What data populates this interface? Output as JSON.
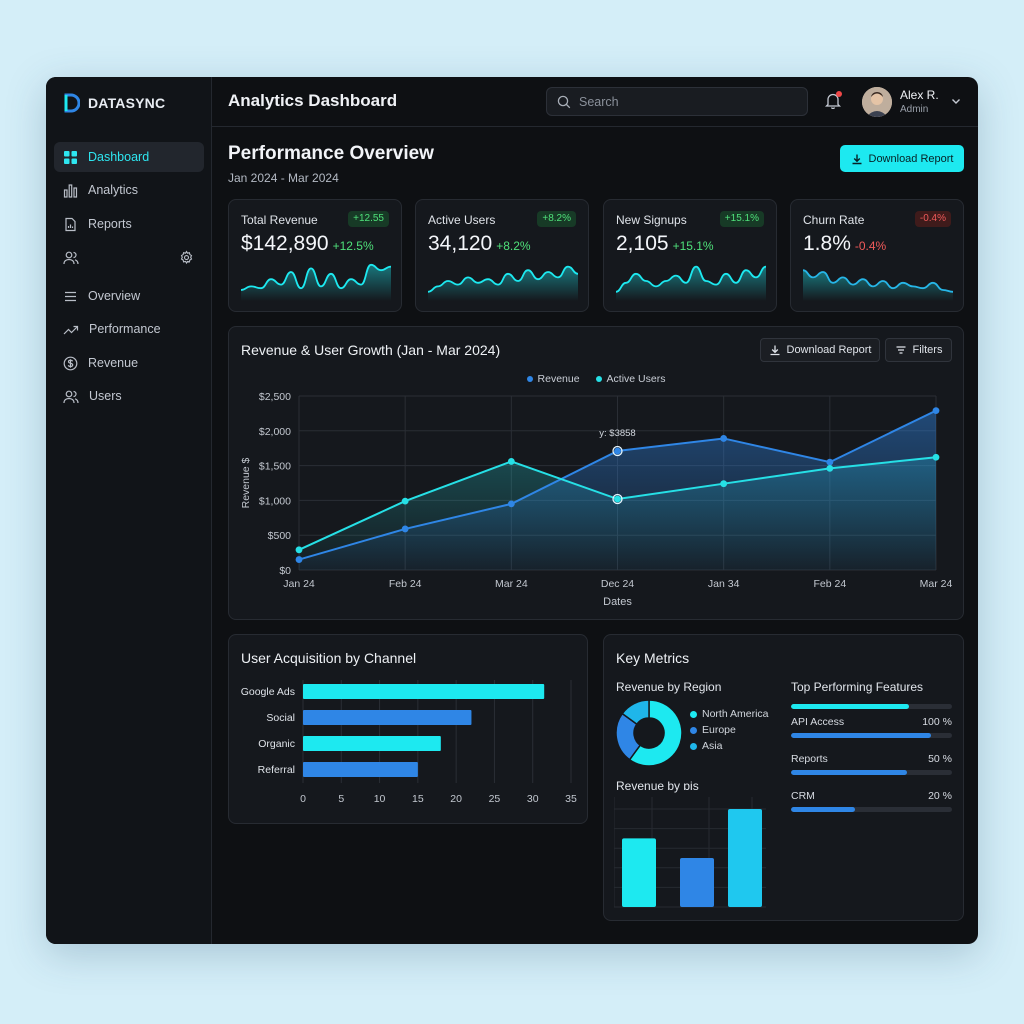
{
  "brand": {
    "name": "DATASYNC",
    "accent": "#1de9f0"
  },
  "sidebar": {
    "items": [
      {
        "label": "Dashboard",
        "icon": "grid-icon",
        "active": true
      },
      {
        "label": "Analytics",
        "icon": "bar-chart-icon"
      },
      {
        "label": "Reports",
        "icon": "document-icon"
      },
      {
        "label": "",
        "icon": "users-icon"
      },
      {
        "label": "Overview",
        "icon": "list-icon"
      },
      {
        "label": "Performance",
        "icon": "trend-icon"
      },
      {
        "label": "Revenue",
        "icon": "dollar-icon"
      },
      {
        "label": "Users",
        "icon": "users-icon"
      }
    ],
    "settings_icon": "gear-icon"
  },
  "header": {
    "title": "Analytics Dashboard",
    "search_placeholder": "Search",
    "user": {
      "name": "Alex R.",
      "role": "Admin"
    }
  },
  "overview": {
    "title": "Performance Overview",
    "date_range": "Jan 2024 - Mar 2024",
    "download_label": "Download Report"
  },
  "stats": [
    {
      "label": "Total Revenue",
      "value": "$142,890",
      "delta": "+12.5%",
      "badge": "+12.55",
      "trend": "up",
      "spark": [
        0.25,
        0.35,
        0.3,
        0.55,
        0.4,
        0.75,
        0.3,
        0.85,
        0.35,
        0.7,
        0.3,
        0.55,
        0.4,
        0.95,
        0.8,
        0.9
      ]
    },
    {
      "label": "Active Users",
      "value": "34,120",
      "delta": "+8.2%",
      "badge": "+8.2%",
      "trend": "up",
      "spark": [
        0.2,
        0.35,
        0.5,
        0.4,
        0.6,
        0.45,
        0.55,
        0.4,
        0.7,
        0.5,
        0.8,
        0.55,
        0.75,
        0.6,
        0.9,
        0.7
      ]
    },
    {
      "label": "New Signups",
      "value": "2,105",
      "delta": "+15.1%",
      "badge": "+15.1%",
      "trend": "up",
      "spark": [
        0.2,
        0.45,
        0.7,
        0.5,
        0.35,
        0.5,
        0.65,
        0.45,
        0.9,
        0.5,
        0.4,
        0.7,
        0.45,
        0.8,
        0.6,
        0.9
      ]
    },
    {
      "label": "Churn Rate",
      "value": "1.8%",
      "delta": "-0.4%",
      "badge": "-0.4%",
      "trend": "down",
      "spark": [
        0.8,
        0.6,
        0.75,
        0.45,
        0.6,
        0.4,
        0.55,
        0.35,
        0.5,
        0.3,
        0.45,
        0.35,
        0.3,
        0.45,
        0.25,
        0.2
      ]
    }
  ],
  "growth_card": {
    "title": "Revenue & User Growth (Jan - Mar 2024)",
    "download_label": "Download Report",
    "filters_label": "Filters",
    "tooltip": "y: $3858"
  },
  "acquisition": {
    "title": "User Acquisition by Channel"
  },
  "key_metrics": {
    "title": "Key Metrics",
    "region_title": "Revenue by Region",
    "pie_legend": [
      {
        "label": "North America",
        "color": "#1de9f0"
      },
      {
        "label": "Europe",
        "color": "#2f86e6"
      },
      {
        "label": "Asia",
        "color": "#1fb6ea"
      }
    ],
    "bar_title": "Revenue by ɒis",
    "features_title": "Top Performing Features",
    "features": [
      {
        "label": "",
        "pct": "",
        "fill": 0.73,
        "color": "#1de9f0"
      },
      {
        "label": "API Access",
        "pct": "100 %",
        "fill": 0.87,
        "color": "#2f86e6"
      },
      {
        "label": "Reports",
        "pct": "50 %",
        "fill": 0.72,
        "color": "#2f86e6"
      },
      {
        "label": "CRM",
        "pct": "20 %",
        "fill": 0.4,
        "color": "#2f86e6"
      }
    ]
  },
  "chart_data": [
    {
      "type": "line",
      "title": "Revenue & User Growth (Jan - Mar 2024)",
      "xlabel": "Dates",
      "ylabel": "Revenue $",
      "categories": [
        "Jan 24",
        "Feb 24",
        "Mar 24",
        "Dec 24",
        "Jan 34",
        "Feb 24",
        "Mar 24"
      ],
      "yticks": [
        "$0",
        "$500",
        "$1,000",
        "$1,500",
        "$2,000",
        "$2,500"
      ],
      "ylim": [
        0,
        2500
      ],
      "grid": true,
      "legend": "top-center",
      "series": [
        {
          "name": "Revenue",
          "color": "#2f86e6",
          "values": [
            150,
            590,
            950,
            1710,
            1890,
            1550,
            2290
          ]
        },
        {
          "name": "Active Users",
          "color": "#26e0e6",
          "values": [
            290,
            990,
            1560,
            1020,
            1240,
            1460,
            1620
          ]
        }
      ]
    },
    {
      "type": "bar",
      "orientation": "horizontal",
      "title": "User Acquisition by Channel",
      "categories": [
        "Google Ads",
        "Social",
        "Organic",
        "Referral"
      ],
      "values": [
        31.5,
        22,
        18,
        15
      ],
      "colors": [
        "#1de9f0",
        "#2f86e6",
        "#1de9f0",
        "#2f86e6"
      ],
      "xticks": [
        0,
        5,
        10,
        15,
        20,
        25,
        30,
        35
      ],
      "xlim": [
        0,
        35
      ]
    },
    {
      "type": "pie",
      "title": "Revenue by Region",
      "categories": [
        "North America",
        "Europe",
        "Asia"
      ],
      "values": [
        60,
        25,
        15
      ],
      "colors": [
        "#1de9f0",
        "#2f86e6",
        "#1fb6ea"
      ]
    },
    {
      "type": "bar",
      "title": "Revenue by ɒis",
      "values": [
        70,
        50,
        100
      ],
      "colors": [
        "#1de9f0",
        "#2f86e6",
        "#1fc8ef"
      ]
    }
  ]
}
